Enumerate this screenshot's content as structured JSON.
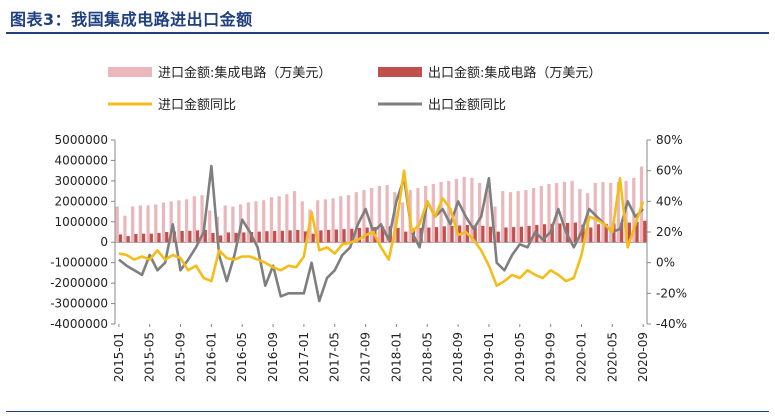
{
  "title": "图表3：我国集成电路进出口金额",
  "colors": {
    "import_bar": "#eab8bc",
    "export_bar": "#c0504d",
    "import_yoy": "#f5bc1a",
    "export_yoy": "#7f7f7f",
    "title": "#1f3f7f"
  },
  "chart_data": {
    "type": "bar+line",
    "legend": [
      "进口金额:集成电路（万美元）",
      "出口金额:集成电路（万美元）",
      "进口金额同比",
      "出口金额同比"
    ],
    "legend_position": "top",
    "y_left": {
      "ticks": [
        "5000000",
        "4000000",
        "3000000",
        "2000000",
        "1000000",
        "0",
        "-1000000",
        "-2000000",
        "-3000000",
        "-4000000"
      ],
      "min": -4000000,
      "max": 5000000
    },
    "y_right": {
      "ticks": [
        "80%",
        "60%",
        "40%",
        "20%",
        "0%",
        "-20%",
        "-40%"
      ],
      "min": -40,
      "max": 80
    },
    "x_tick_labels": [
      "2015-01",
      "2015-05",
      "2015-09",
      "2016-01",
      "2016-05",
      "2016-09",
      "2017-01",
      "2017-05",
      "2017-09",
      "2018-01",
      "2018-05",
      "2018-09",
      "2019-01",
      "2019-05",
      "2019-09",
      "2020-01",
      "2020-05",
      "2020-09"
    ],
    "months": [
      "2015-01",
      "2015-02",
      "2015-03",
      "2015-04",
      "2015-05",
      "2015-06",
      "2015-07",
      "2015-08",
      "2015-09",
      "2015-10",
      "2015-11",
      "2015-12",
      "2016-01",
      "2016-02",
      "2016-03",
      "2016-04",
      "2016-05",
      "2016-06",
      "2016-07",
      "2016-08",
      "2016-09",
      "2016-10",
      "2016-11",
      "2016-12",
      "2017-01",
      "2017-02",
      "2017-03",
      "2017-04",
      "2017-05",
      "2017-06",
      "2017-07",
      "2017-08",
      "2017-09",
      "2017-10",
      "2017-11",
      "2017-12",
      "2018-01",
      "2018-02",
      "2018-03",
      "2018-04",
      "2018-05",
      "2018-06",
      "2018-07",
      "2018-08",
      "2018-09",
      "2018-10",
      "2018-11",
      "2018-12",
      "2019-01",
      "2019-02",
      "2019-03",
      "2019-04",
      "2019-05",
      "2019-06",
      "2019-07",
      "2019-08",
      "2019-09",
      "2019-10",
      "2019-11",
      "2019-12",
      "2020-01",
      "2020-02",
      "2020-03",
      "2020-04",
      "2020-05",
      "2020-06",
      "2020-07",
      "2020-08",
      "2020-09"
    ],
    "series": [
      {
        "name": "进口金额:集成电路（万美元）",
        "kind": "bar",
        "axis": "left",
        "values": [
          1750000,
          1300000,
          1750000,
          1800000,
          1800000,
          1850000,
          1950000,
          2000000,
          2050000,
          2100000,
          2250000,
          2300000,
          1550000,
          1250000,
          1800000,
          1750000,
          1850000,
          1950000,
          2000000,
          2050000,
          2200000,
          2250000,
          2350000,
          2500000,
          2000000,
          1600000,
          2050000,
          2100000,
          2150000,
          2250000,
          2300000,
          2450000,
          2550000,
          2650000,
          2750000,
          2800000,
          2450000,
          1950000,
          2550000,
          2650000,
          2750000,
          2850000,
          2950000,
          3000000,
          3100000,
          3200000,
          3150000,
          2900000,
          2600000,
          1750000,
          2500000,
          2450000,
          2500000,
          2550000,
          2650000,
          2750000,
          2850000,
          2900000,
          2950000,
          3000000,
          2600000,
          2400000,
          2900000,
          2950000,
          2900000,
          2950000,
          3000000,
          3150000,
          3700000
        ]
      },
      {
        "name": "出口金额:集成电路（万美元）",
        "kind": "bar",
        "axis": "left",
        "values": [
          380000,
          300000,
          400000,
          420000,
          420000,
          450000,
          500000,
          520000,
          550000,
          560000,
          580000,
          600000,
          450000,
          330000,
          480000,
          460000,
          480000,
          500000,
          520000,
          540000,
          550000,
          560000,
          580000,
          600000,
          530000,
          420000,
          580000,
          600000,
          620000,
          640000,
          660000,
          700000,
          720000,
          740000,
          760000,
          780000,
          700000,
          520000,
          680000,
          700000,
          720000,
          740000,
          780000,
          800000,
          820000,
          840000,
          820000,
          800000,
          760000,
          520000,
          720000,
          740000,
          760000,
          800000,
          840000,
          880000,
          900000,
          920000,
          940000,
          960000,
          860000,
          720000,
          880000,
          900000,
          920000,
          940000,
          960000,
          1000000,
          1050000
        ]
      },
      {
        "name": "进口金额同比",
        "kind": "line",
        "axis": "right",
        "values": [
          6,
          5,
          2,
          4,
          2,
          8,
          2,
          5,
          3,
          -5,
          -2,
          -10,
          -12,
          8,
          3,
          2,
          4,
          4,
          2,
          0,
          -3,
          -5,
          -2,
          -3,
          4,
          33,
          8,
          10,
          6,
          12,
          13,
          15,
          18,
          20,
          10,
          2,
          25,
          60,
          20,
          25,
          40,
          30,
          42,
          35,
          18,
          20,
          15,
          8,
          -2,
          -15,
          -12,
          -8,
          -10,
          -5,
          -8,
          -10,
          -5,
          -8,
          -12,
          -10,
          5,
          30,
          28,
          25,
          20,
          55,
          10,
          25,
          40
        ]
      },
      {
        "name": "出口金额同比",
        "kind": "line",
        "axis": "right",
        "values": [
          2,
          -2,
          -5,
          -8,
          5,
          -5,
          0,
          25,
          -5,
          2,
          10,
          20,
          63,
          5,
          -12,
          5,
          28,
          20,
          10,
          -15,
          -2,
          -22,
          -20,
          -20,
          -20,
          0,
          -25,
          -10,
          -5,
          5,
          10,
          25,
          35,
          20,
          25,
          15,
          40,
          55,
          20,
          10,
          40,
          30,
          35,
          25,
          40,
          30,
          22,
          30,
          55,
          0,
          -5,
          5,
          12,
          10,
          20,
          15,
          20,
          35,
          20,
          10,
          20,
          35,
          30,
          25,
          20,
          22,
          40,
          30,
          35
        ]
      }
    ]
  }
}
